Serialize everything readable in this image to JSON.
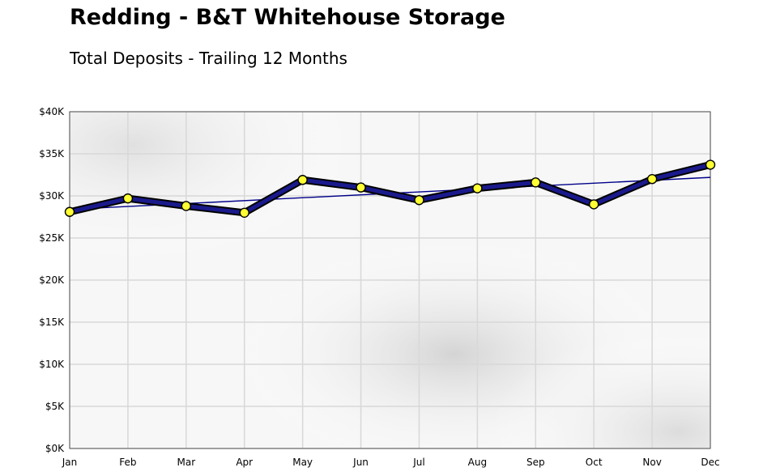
{
  "chart_data": {
    "type": "line",
    "title": "Redding - B&T Whitehouse Storage",
    "subtitle": "Total Deposits - Trailing 12 Months",
    "categories": [
      "Jan",
      "Feb",
      "Mar",
      "Apr",
      "May",
      "Jun",
      "Jul",
      "Aug",
      "Sep",
      "Oct",
      "Nov",
      "Dec"
    ],
    "series": [
      {
        "values": [
          28100,
          29700,
          28800,
          28000,
          31900,
          31000,
          29500,
          30900,
          31600,
          29000,
          32000,
          33700
        ]
      }
    ],
    "trendline": {
      "start": 28400,
      "end": 32200
    },
    "ylim": [
      0,
      40000
    ],
    "yticks": [
      0,
      5000,
      10000,
      15000,
      20000,
      25000,
      30000,
      35000,
      40000
    ],
    "ytick_labels": [
      "$0K",
      "$5K",
      "$10K",
      "$15K",
      "$20K",
      "$25K",
      "$30K",
      "$35K",
      "$40K"
    ],
    "grid": true,
    "colors": {
      "line": "#1a1a8c",
      "line_outline": "#000000",
      "marker": "#ffff33",
      "trend": "#00008b",
      "grid": "#d8d8d8"
    }
  }
}
